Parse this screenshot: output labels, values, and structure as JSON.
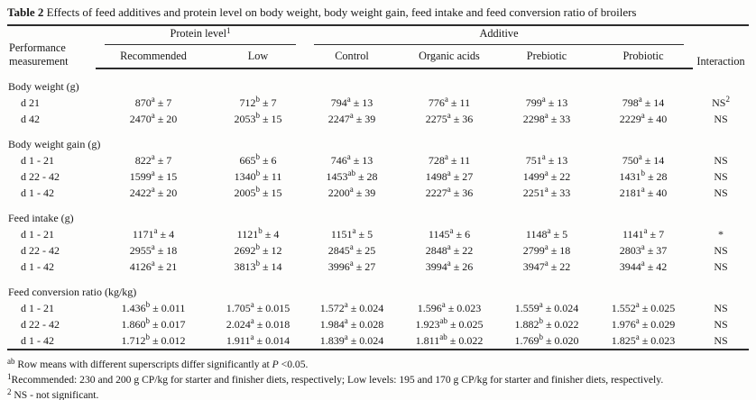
{
  "title": {
    "label": "Table 2",
    "text": "Effects of feed additives and protein level on body weight, body weight gain, feed intake and feed conversion ratio of broilers"
  },
  "table": {
    "col1_header": "Performance measurement",
    "groups": [
      {
        "label": "Protein level^{1}",
        "span": 2
      },
      {
        "label": "Additive",
        "span": 4
      }
    ],
    "subheaders": [
      "Recommended",
      "Low",
      "Control",
      "Organic acids",
      "Prebiotic",
      "Probiotic"
    ],
    "interaction_header": "Interaction",
    "rows": [
      {
        "type": "section",
        "label": "Body weight (g)"
      },
      {
        "type": "data",
        "label": "d 21",
        "cells": [
          "870^{a} ± 7",
          "712^{b} ± 7",
          "794^{a} ± 13",
          "776^{a} ± 11",
          "799^{a} ± 13",
          "798^{a} ± 14",
          "NS^{2}"
        ]
      },
      {
        "type": "data",
        "label": "d 42",
        "cells": [
          "2470^{a} ± 20",
          "2053^{b} ± 15",
          "2247^{a} ± 39",
          "2275^{a} ± 36",
          "2298^{a} ± 33",
          "2229^{a} ± 40",
          "NS"
        ]
      },
      {
        "type": "section",
        "label": "Body weight gain (g)"
      },
      {
        "type": "data",
        "label": "d 1 - 21",
        "cells": [
          "822^{a} ± 7",
          "665^{b} ± 6",
          "746^{a} ± 13",
          "728^{a} ± 11",
          "751^{a} ± 13",
          "750^{a} ± 14",
          "NS"
        ]
      },
      {
        "type": "data",
        "label": "d 22 - 42",
        "cells": [
          "1599^{a} ± 15",
          "1340^{b} ± 11",
          "1453^{ab} ± 28",
          "1498^{a} ± 27",
          "1499^{a} ± 22",
          "1431^{b} ± 28",
          "NS"
        ]
      },
      {
        "type": "data",
        "label": "d 1 - 42",
        "cells": [
          "2422^{a} ± 20",
          "2005^{b} ± 15",
          "2200^{a} ± 39",
          "2227^{a} ± 36",
          "2251^{a} ± 33",
          "2181^{a} ± 40",
          "NS"
        ]
      },
      {
        "type": "section",
        "label": "Feed intake (g)"
      },
      {
        "type": "data",
        "label": "d 1 - 21",
        "cells": [
          "1171^{a} ± 4",
          "1121^{b} ± 4",
          "1151^{a} ± 5",
          "1145^{a} ± 6",
          "1148^{a} ± 5",
          "1141^{a} ± 7",
          "*"
        ]
      },
      {
        "type": "data",
        "label": "d 22 - 42",
        "cells": [
          "2955^{a} ± 18",
          "2692^{b} ± 12",
          "2845^{a} ± 25",
          "2848^{a} ± 22",
          "2799^{a} ± 18",
          "2803^{a} ± 37",
          "NS"
        ]
      },
      {
        "type": "data",
        "label": "d 1 - 42",
        "cells": [
          "4126^{a} ± 21",
          "3813^{b} ± 14",
          "3996^{a} ± 27",
          "3994^{a} ± 26",
          "3947^{a} ± 22",
          "3944^{a} ± 42",
          "NS"
        ]
      },
      {
        "type": "section",
        "label": "Feed conversion ratio (kg/kg)"
      },
      {
        "type": "data",
        "label": "d 1 - 21",
        "cells": [
          "1.436^{b} ± 0.011",
          "1.705^{a} ± 0.015",
          "1.572^{a} ± 0.024",
          "1.596^{a} ± 0.023",
          "1.559^{a} ± 0.024",
          "1.552^{a} ± 0.025",
          "NS"
        ]
      },
      {
        "type": "data",
        "label": "d 22 - 42",
        "cells": [
          "1.860^{b} ± 0.017",
          "2.024^{a} ± 0.018",
          "1.984^{a} ± 0.028",
          "1.923^{ab} ± 0.025",
          "1.882^{b} ± 0.022",
          "1.976^{a} ± 0.029",
          "NS"
        ]
      },
      {
        "type": "data",
        "label": "d 1 - 42",
        "cells": [
          "1.712^{b} ± 0.012",
          "1.911^{a} ± 0.014",
          "1.839^{a} ± 0.024",
          "1.811^{ab} ± 0.022",
          "1.769^{b} ± 0.020",
          "1.825^{a} ± 0.023",
          "NS"
        ]
      }
    ]
  },
  "footnotes": [
    "^{ab} Row means with different superscripts differ significantly at *P* <0.05.",
    "^{1}Recommended: 230 and 200 g CP/kg for starter and finisher diets, respectively; Low levels: 195 and 170 g CP/kg for starter and finisher diets, respectively.",
    "^{2} NS - not significant."
  ]
}
